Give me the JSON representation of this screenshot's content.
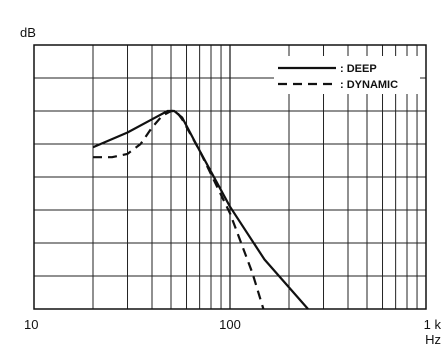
{
  "chart_data": {
    "type": "line",
    "ylabel": "dB",
    "xunit": "Hz",
    "xscale": "log",
    "xlim": [
      10,
      1000
    ],
    "ylim": [
      0,
      8
    ],
    "grid": true,
    "x_tick_labels": [
      "10",
      "100",
      "1 k"
    ],
    "legend_position": "top-right",
    "series": [
      {
        "name": ": DEEP",
        "style": "solid",
        "x": [
          20,
          30,
          40,
          48,
          52,
          57,
          70,
          100,
          150,
          250
        ],
        "y": [
          4.9,
          5.35,
          5.75,
          6.0,
          6.0,
          5.8,
          4.8,
          3.1,
          1.5,
          0
        ]
      },
      {
        "name": ": DYNAMIC",
        "style": "dashed",
        "x": [
          20,
          25,
          30,
          35,
          40,
          45,
          50,
          53,
          57,
          70,
          100,
          130,
          148
        ],
        "y": [
          4.6,
          4.6,
          4.7,
          5.0,
          5.5,
          5.85,
          6.0,
          6.0,
          5.75,
          4.8,
          2.9,
          1.1,
          0
        ]
      }
    ],
    "colors": {
      "line": "#111111",
      "grid": "#222222",
      "background": "#ffffff"
    }
  }
}
